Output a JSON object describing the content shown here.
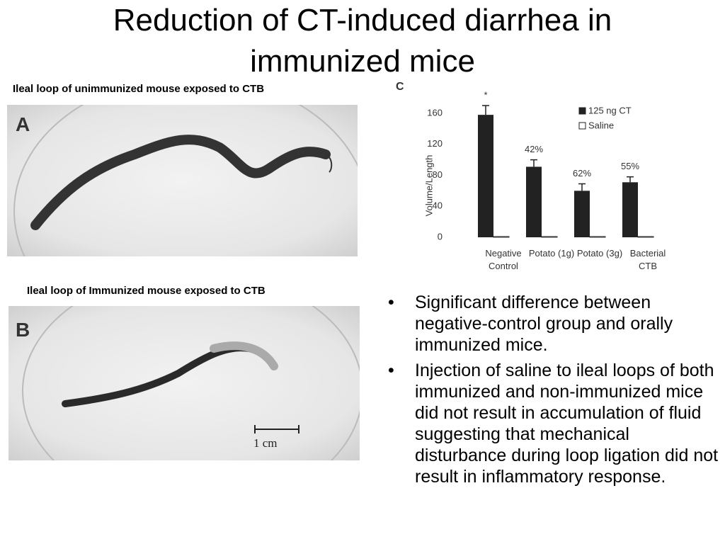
{
  "title": "Reduction of CT-induced diarrhea in immunized mice",
  "panels": [
    {
      "caption": "Ileal loop of unimmunized mouse exposed to CTB",
      "letter": "A"
    },
    {
      "caption": "Ileal loop of Immunized mouse exposed to CTB",
      "letter": "B",
      "scale_label": "1 cm"
    }
  ],
  "chart_data": {
    "type": "bar",
    "panel_label": "C",
    "y_label": "Volume/Length",
    "categories": [
      "Negative Control",
      "Potato (1g)",
      "Potato (3g)",
      "Bacterial CTB"
    ],
    "series": [
      {
        "name": "125 ng CT",
        "color": "#222222",
        "values": [
          158,
          91,
          60,
          71
        ],
        "errors": [
          12,
          9,
          9,
          7
        ],
        "annotations": [
          "*",
          "42%",
          "62%",
          "55%"
        ]
      },
      {
        "name": "Saline",
        "color": "#ffffff",
        "values": [
          1,
          1,
          1,
          1
        ]
      }
    ],
    "ylim": [
      0,
      170
    ],
    "yticks": [
      0,
      40,
      80,
      120,
      160
    ]
  },
  "bullets": [
    "Significant difference between negative-control group and orally immunized mice.",
    "Injection of saline to ileal loops of both immunized and non-immunized mice did not result in accumulation of fluid suggesting that mechanical disturbance during loop ligation did not result in inflammatory response."
  ]
}
